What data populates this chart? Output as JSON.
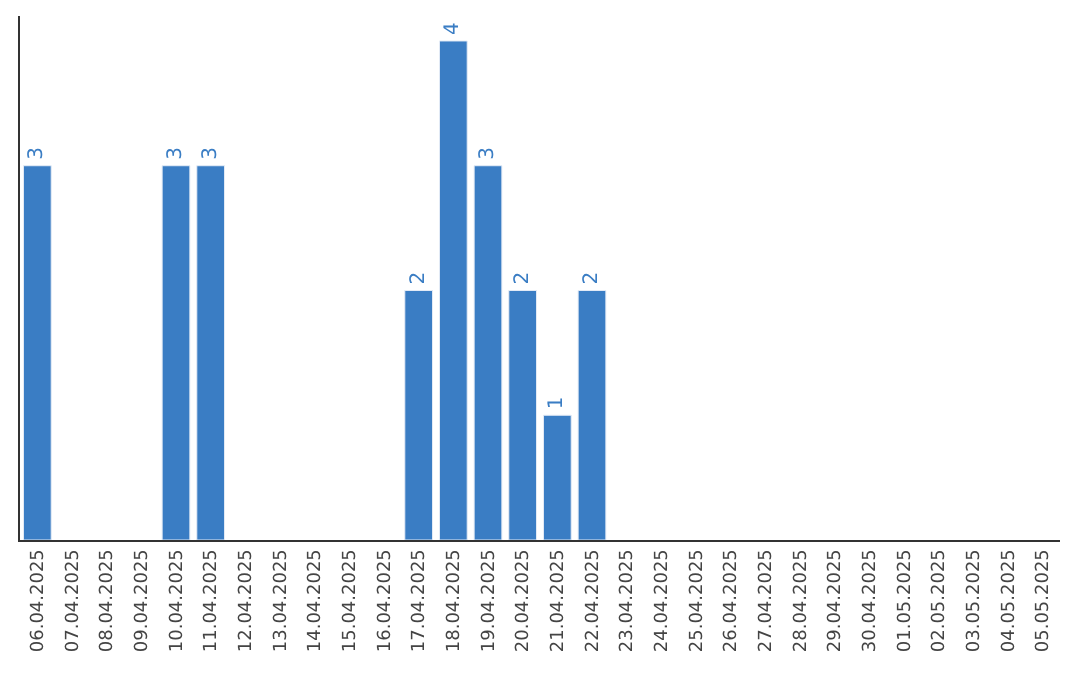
{
  "chart_data": {
    "type": "bar",
    "categories": [
      "06.04.2025",
      "07.04.2025",
      "08.04.2025",
      "09.04.2025",
      "10.04.2025",
      "11.04.2025",
      "12.04.2025",
      "13.04.2025",
      "14.04.2025",
      "15.04.2025",
      "16.04.2025",
      "17.04.2025",
      "18.04.2025",
      "19.04.2025",
      "20.04.2025",
      "21.04.2025",
      "22.04.2025",
      "23.04.2025",
      "24.04.2025",
      "25.04.2025",
      "26.04.2025",
      "27.04.2025",
      "28.04.2025",
      "29.04.2025",
      "30.04.2025",
      "01.05.2025",
      "02.05.2025",
      "03.05.2025",
      "04.05.2025",
      "05.05.2025"
    ],
    "values": [
      3,
      null,
      null,
      null,
      3,
      3,
      null,
      null,
      null,
      null,
      null,
      2,
      4,
      3,
      2,
      1,
      2,
      null,
      null,
      null,
      null,
      null,
      null,
      null,
      null,
      null,
      null,
      null,
      null,
      null
    ],
    "color": "#3a7dc4",
    "data_labels": true,
    "ylim": [
      0,
      4.2
    ],
    "tick_labels": "x"
  }
}
